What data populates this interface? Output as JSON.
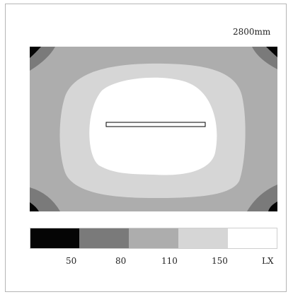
{
  "chart_data": {
    "type": "heatmap",
    "title": "",
    "dimension_label": "2800mm",
    "unit": "LX",
    "legend": {
      "bins": [
        {
          "max": 50,
          "color": "#050505"
        },
        {
          "min": 50,
          "max": 80,
          "color": "#7a7a7a"
        },
        {
          "min": 80,
          "max": 110,
          "color": "#adadad"
        },
        {
          "min": 110,
          "max": 150,
          "color": "#d6d6d6"
        },
        {
          "min": 150,
          "color": "#ffffff"
        }
      ],
      "tick_labels": [
        "50",
        "80",
        "110",
        "150"
      ],
      "unit_label": "LX"
    },
    "zones": [
      {
        "level": "<50",
        "location": "corners"
      },
      {
        "level": "50-80",
        "location": "corner bands"
      },
      {
        "level": "80-110",
        "location": "outer ring"
      },
      {
        "level": "110-150",
        "location": "middle ring"
      },
      {
        "level": ">150",
        "location": "center"
      }
    ],
    "fixture": {
      "shape": "rectangle",
      "position": "center"
    }
  }
}
